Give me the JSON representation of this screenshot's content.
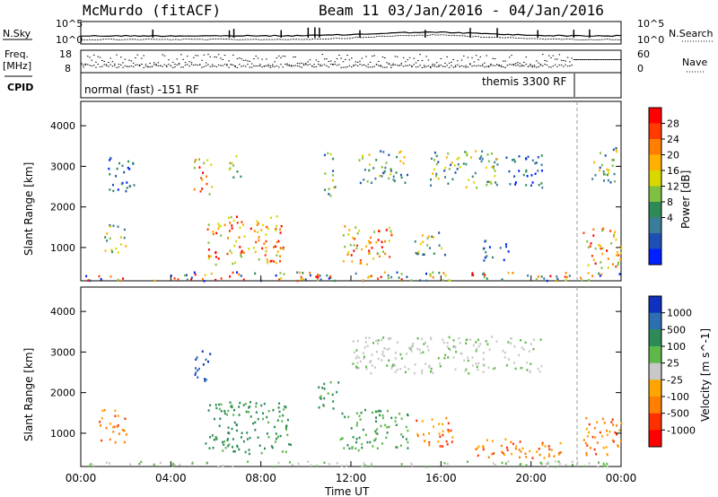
{
  "header": {
    "station": "McMurdo (fitACF)",
    "beam_info": "Beam 11  03/Jan/2016 - 04/Jan/2016"
  },
  "status_panels": {
    "nsky_label": "N.Sky",
    "nsearch_label": "N.Search",
    "noise_ticks_left": [
      "10^5",
      "10^0"
    ],
    "noise_ticks_right": [
      "10^5",
      "10^0"
    ],
    "freq_label_line1": "Freq.",
    "freq_label_line2": "[MHz]",
    "freq_ticks": [
      "18",
      "8"
    ],
    "nave_label": "Nave",
    "nave_ticks": [
      "60",
      "0"
    ],
    "cpid_label": "CPID",
    "cpid_modes": [
      {
        "text": "normal (fast) -151 RF",
        "start_hour": 0.0
      },
      {
        "text": "themis 3300 RF",
        "start_hour": 21.8
      }
    ]
  },
  "chart_data": [
    {
      "type": "heatmap",
      "name": "power",
      "ylabel": "Slant Range [km]",
      "ylim": [
        180,
        4600
      ],
      "yticks": [
        1000,
        2000,
        3000,
        4000
      ],
      "xlim": [
        0,
        24
      ],
      "colorbar": {
        "label": "Power [dB]",
        "ticks": [
          "28",
          "24",
          "20",
          "16",
          "12",
          "8",
          "4"
        ],
        "colors": [
          "#ff0000",
          "#ff3b00",
          "#ff8000",
          "#ffb000",
          "#d8d800",
          "#7fc040",
          "#2e8b57",
          "#3a7d9a",
          "#1e4fb4",
          "#0020ff"
        ]
      },
      "echo_regions": [
        {
          "t0": 0.0,
          "t1": 24.0,
          "r0": 200,
          "r1": 420,
          "level": "mixed-strong"
        },
        {
          "t0": 1.0,
          "t1": 2.0,
          "r0": 900,
          "r1": 1600,
          "level": "moderate"
        },
        {
          "t0": 1.2,
          "t1": 2.4,
          "r0": 2400,
          "r1": 3300,
          "level": "weak"
        },
        {
          "t0": 5.0,
          "t1": 5.8,
          "r0": 2300,
          "r1": 3200,
          "level": "strong"
        },
        {
          "t0": 6.5,
          "t1": 7.1,
          "r0": 2700,
          "r1": 3300,
          "level": "moderate"
        },
        {
          "t0": 5.6,
          "t1": 9.0,
          "r0": 600,
          "r1": 1800,
          "level": "strong"
        },
        {
          "t0": 10.8,
          "t1": 11.3,
          "r0": 2300,
          "r1": 3400,
          "level": "moderate"
        },
        {
          "t0": 11.6,
          "t1": 13.8,
          "r0": 600,
          "r1": 1600,
          "level": "strong"
        },
        {
          "t0": 12.3,
          "t1": 14.5,
          "r0": 2600,
          "r1": 3400,
          "level": "moderate"
        },
        {
          "t0": 14.8,
          "t1": 16.2,
          "r0": 800,
          "r1": 1400,
          "level": "moderate"
        },
        {
          "t0": 15.5,
          "t1": 18.5,
          "r0": 2500,
          "r1": 3400,
          "level": "moderate"
        },
        {
          "t0": 17.8,
          "t1": 19.0,
          "r0": 700,
          "r1": 1200,
          "level": "weak"
        },
        {
          "t0": 18.8,
          "t1": 20.5,
          "r0": 2500,
          "r1": 3300,
          "level": "weak"
        },
        {
          "t0": 22.3,
          "t1": 24.0,
          "r0": 500,
          "r1": 1500,
          "level": "strong"
        },
        {
          "t0": 22.6,
          "t1": 23.8,
          "r0": 2600,
          "r1": 3500,
          "level": "moderate"
        }
      ]
    },
    {
      "type": "heatmap",
      "name": "velocity",
      "ylabel": "Slant Range [km]",
      "xlabel": "Time UT",
      "ylim": [
        180,
        4600
      ],
      "yticks": [
        1000,
        2000,
        3000,
        4000
      ],
      "xlim": [
        0,
        24
      ],
      "xticks": [
        "00:00",
        "04:00",
        "08:00",
        "12:00",
        "16:00",
        "20:00",
        "00:00"
      ],
      "colorbar": {
        "label": "Velocity [m s^-1]",
        "ticks": [
          "1000",
          "500",
          "100",
          "25",
          "-25",
          "-100",
          "-500",
          "-1000"
        ],
        "colors": [
          "#1030c0",
          "#2d6fb0",
          "#2e8b57",
          "#5fb84a",
          "#c8c8c8",
          "#ffa500",
          "#ff7f00",
          "#ff3000",
          "#ff0000"
        ]
      },
      "echo_regions": [
        {
          "t0": 0.0,
          "t1": 24.0,
          "r0": 200,
          "r1": 330,
          "level": "ground"
        },
        {
          "t0": 0.8,
          "t1": 2.0,
          "r0": 800,
          "r1": 1600,
          "level": "toward"
        },
        {
          "t0": 5.0,
          "t1": 5.8,
          "r0": 2300,
          "r1": 3100,
          "level": "away-fast"
        },
        {
          "t0": 5.5,
          "t1": 9.3,
          "r0": 500,
          "r1": 1800,
          "level": "away"
        },
        {
          "t0": 10.5,
          "t1": 11.5,
          "r0": 1600,
          "r1": 2300,
          "level": "away"
        },
        {
          "t0": 11.5,
          "t1": 14.5,
          "r0": 600,
          "r1": 1600,
          "level": "away-slow"
        },
        {
          "t0": 12.0,
          "t1": 20.5,
          "r0": 2500,
          "r1": 3400,
          "level": "low"
        },
        {
          "t0": 14.8,
          "t1": 16.5,
          "r0": 700,
          "r1": 1400,
          "level": "toward"
        },
        {
          "t0": 17.5,
          "t1": 21.5,
          "r0": 400,
          "r1": 900,
          "level": "toward"
        },
        {
          "t0": 22.3,
          "t1": 24.0,
          "r0": 400,
          "r1": 1400,
          "level": "toward"
        }
      ]
    }
  ]
}
